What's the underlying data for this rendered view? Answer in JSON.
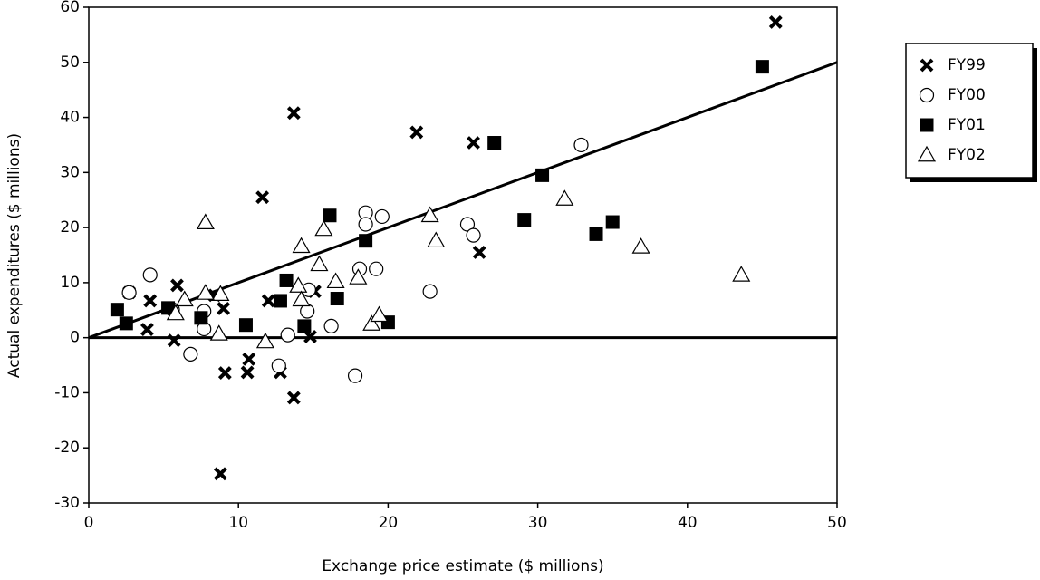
{
  "chart_data": {
    "type": "scatter",
    "xlabel": "Exchange price estimate ($ millions)",
    "ylabel": "Actual expenditures ($ millions)",
    "xlim": [
      0,
      50
    ],
    "ylim": [
      -30,
      60
    ],
    "xticks": [
      0,
      10,
      20,
      30,
      40,
      50
    ],
    "yticks": [
      -30,
      -20,
      -10,
      0,
      10,
      20,
      30,
      40,
      50,
      60
    ],
    "grid": false,
    "legend": "right",
    "reference_line": {
      "x": [
        0,
        50
      ],
      "y": [
        0,
        50
      ]
    },
    "zero_line": true,
    "series": [
      {
        "name": "FY99",
        "color": "#000000",
        "marker": "x",
        "x": [
          45.9,
          13.7,
          21.9,
          25.7,
          11.6,
          26.1,
          2.7,
          4.1,
          5.9,
          3.9,
          5.7,
          9.0,
          12.0,
          15.1,
          14.8,
          9.1,
          10.7,
          10.6,
          12.8,
          13.7,
          8.8,
          8.4
        ],
        "y": [
          57.3,
          40.8,
          37.3,
          35.4,
          25.5,
          15.5,
          8.2,
          6.7,
          9.5,
          1.5,
          -0.5,
          5.3,
          6.7,
          8.4,
          0.2,
          -6.4,
          -3.9,
          -6.3,
          -6.3,
          -10.9,
          -24.7,
          7.7
        ]
      },
      {
        "name": "FY00",
        "color": "#000000",
        "marker": "circle",
        "x": [
          32.9,
          25.3,
          25.7,
          18.5,
          18.5,
          19.6,
          18.1,
          19.2,
          22.8,
          2.7,
          4.1,
          5.6,
          7.7,
          7.7,
          6.8,
          14.6,
          14.7,
          13.3,
          16.2,
          12.7,
          17.8
        ],
        "y": [
          35.0,
          20.6,
          18.6,
          22.7,
          20.6,
          22.0,
          12.5,
          12.5,
          8.4,
          8.2,
          11.4,
          5.1,
          4.8,
          1.6,
          -3.0,
          4.8,
          8.7,
          0.5,
          2.1,
          -5.1,
          -6.9
        ]
      },
      {
        "name": "FY01",
        "color": "#000000",
        "marker": "square",
        "x": [
          45.0,
          27.1,
          30.3,
          29.1,
          35.0,
          33.9,
          16.1,
          18.5,
          13.2,
          12.8,
          16.6,
          14.4,
          20.0,
          10.5,
          1.9,
          2.5,
          5.3,
          7.5
        ],
        "y": [
          49.2,
          35.4,
          29.5,
          21.4,
          21.0,
          18.8,
          22.2,
          17.6,
          10.4,
          6.7,
          7.1,
          2.1,
          2.8,
          2.3,
          5.1,
          2.6,
          5.4,
          3.6
        ]
      },
      {
        "name": "FY02",
        "color": "#000000",
        "marker": "triangle",
        "x": [
          31.8,
          36.9,
          43.6,
          7.8,
          22.8,
          23.2,
          14.2,
          15.7,
          15.4,
          16.5,
          18.0,
          14.0,
          14.2,
          8.8,
          7.8,
          6.4,
          5.8,
          8.7,
          11.8,
          18.9,
          19.4
        ],
        "y": [
          25.2,
          16.5,
          11.4,
          20.9,
          22.2,
          17.6,
          16.6,
          19.7,
          13.3,
          10.2,
          10.9,
          9.4,
          6.9,
          7.9,
          8.1,
          6.9,
          4.4,
          0.7,
          -0.7,
          2.5,
          4.1
        ]
      }
    ]
  }
}
